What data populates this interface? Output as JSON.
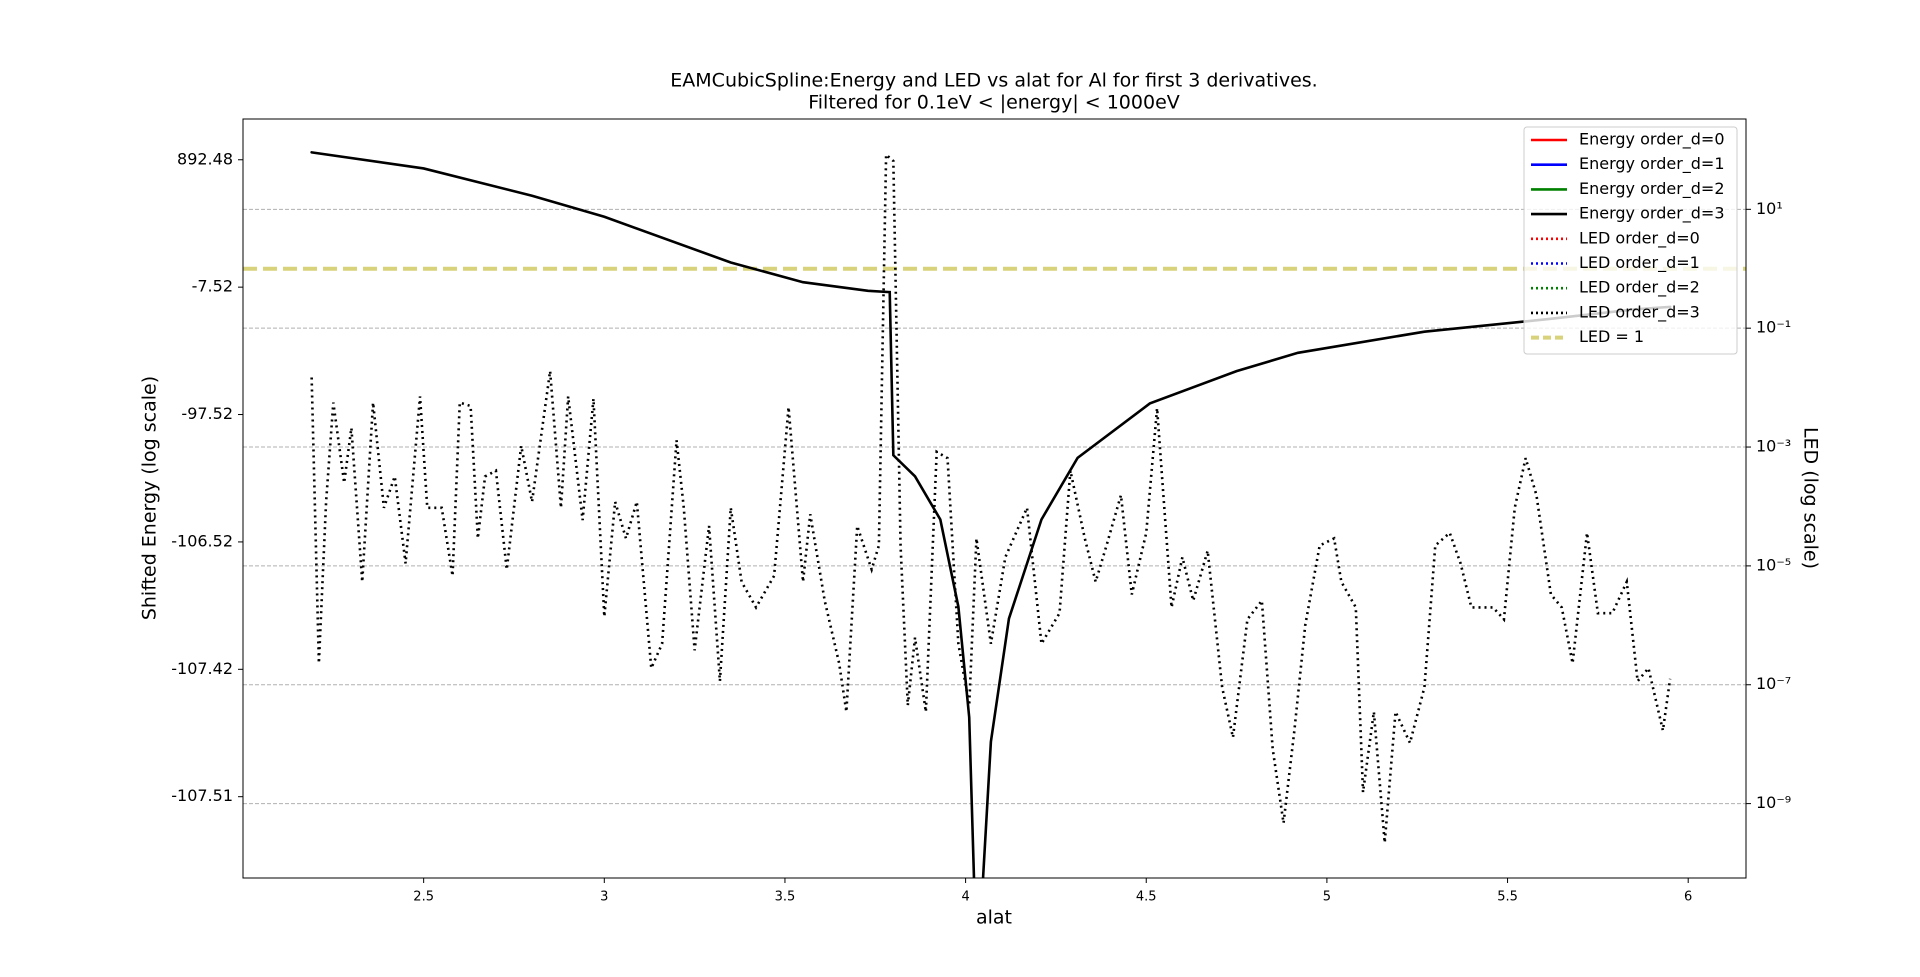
{
  "chart_data": {
    "type": "line",
    "title": "EAMCubicSpline:Energy and LED vs alat for Al for first 3 derivatives.",
    "subtitle": "Filtered for 0.1eV < |energy| < 1000eV",
    "x_label": "alat",
    "y_label": "Shifted Energy (log scale)",
    "y2_label": "LED (log scale)",
    "xlim": [
      2.0,
      6.16
    ],
    "xticks": [
      2.5,
      3.0,
      3.5,
      4.0,
      4.5,
      5.0,
      5.5,
      6.0
    ],
    "ylim": [
      -107.5177,
      1981.7
    ],
    "yticks": [
      892.48,
      -7.52,
      -97.52,
      -106.52,
      -107.42,
      -107.51
    ],
    "y2scale": "log",
    "y2lim": [
      5.6e-11,
      331
    ],
    "y2ticks": [
      {
        "value": 10,
        "label": "10¹"
      },
      {
        "value": 0.1,
        "label": "10⁻¹"
      },
      {
        "value": 0.001,
        "label": "10⁻³"
      },
      {
        "value": 1e-05,
        "label": "10⁻⁵"
      },
      {
        "value": 1e-07,
        "label": "10⁻⁷"
      },
      {
        "value": 1e-09,
        "label": "10⁻⁹"
      }
    ],
    "grid": "y2",
    "legend": "upper right",
    "series": [
      {
        "name": "Energy order_d=0",
        "color": "#ff0000",
        "style": "solid",
        "axis": "y",
        "x": [],
        "values": []
      },
      {
        "name": "Energy order_d=1",
        "color": "#0000ff",
        "style": "solid",
        "axis": "y",
        "x": [],
        "values": []
      },
      {
        "name": "Energy order_d=2",
        "color": "#008000",
        "style": "solid",
        "axis": "y",
        "x": [],
        "values": []
      },
      {
        "name": "Energy order_d=3",
        "color": "#000000",
        "style": "solid",
        "axis": "y",
        "x": [
          2.19,
          2.5,
          2.8,
          3.0,
          3.35,
          3.55,
          3.73,
          3.79,
          3.8,
          3.86,
          3.93,
          3.98,
          4.01,
          4.027,
          4.041,
          4.07,
          4.12,
          4.21,
          4.31,
          4.51,
          4.75,
          4.92,
          5.27,
          5.61,
          5.85,
          5.95
        ],
        "values": [
          1035.5,
          747.5,
          414.6,
          249.6,
          48.6,
          1.8,
          -14.0,
          -16.1,
          -102.73,
          -104.25,
          -106.02,
          -107.21,
          -107.478,
          -107.519,
          -107.519,
          -107.493,
          -107.27,
          -106.02,
          -102.95,
          -95.3,
          -85.6,
          -77.0,
          -62.8,
          -51.5,
          -40.7,
          -37.5
        ]
      },
      {
        "name": "LED order_d=0",
        "color": "#ff0000",
        "style": "dotted",
        "axis": "y2",
        "x": [],
        "values": []
      },
      {
        "name": "LED order_d=1",
        "color": "#0000ff",
        "style": "dotted",
        "axis": "y2",
        "x": [],
        "values": []
      },
      {
        "name": "LED order_d=2",
        "color": "#008000",
        "style": "dotted",
        "axis": "y2",
        "x": [],
        "values": []
      },
      {
        "name": "LED order_d=3",
        "color": "#000000",
        "style": "dotted",
        "axis": "y2",
        "x": [
          2.19,
          2.21,
          2.23,
          2.25,
          2.28,
          2.3,
          2.33,
          2.36,
          2.39,
          2.42,
          2.45,
          2.49,
          2.51,
          2.55,
          2.58,
          2.6,
          2.63,
          2.65,
          2.67,
          2.7,
          2.73,
          2.77,
          2.8,
          2.85,
          2.88,
          2.9,
          2.94,
          2.97,
          3.0,
          3.03,
          3.06,
          3.09,
          3.13,
          3.16,
          3.2,
          3.22,
          3.25,
          3.29,
          3.32,
          3.35,
          3.38,
          3.42,
          3.47,
          3.51,
          3.55,
          3.57,
          3.61,
          3.65,
          3.67,
          3.7,
          3.74,
          3.76,
          3.78,
          3.8,
          3.82,
          3.84,
          3.86,
          3.89,
          3.92,
          3.95,
          3.98,
          4.01,
          4.03,
          4.07,
          4.11,
          4.17,
          4.21,
          4.26,
          4.29,
          4.33,
          4.36,
          4.39,
          4.43,
          4.46,
          4.5,
          4.53,
          4.57,
          4.6,
          4.63,
          4.67,
          4.71,
          4.74,
          4.78,
          4.82,
          4.85,
          4.88,
          4.91,
          4.94,
          4.98,
          5.02,
          5.04,
          5.08,
          5.1,
          5.13,
          5.16,
          5.19,
          5.23,
          5.27,
          5.3,
          5.34,
          5.37,
          5.4,
          5.46,
          5.49,
          5.52,
          5.55,
          5.58,
          5.62,
          5.65,
          5.68,
          5.72,
          5.75,
          5.79,
          5.83,
          5.86,
          5.89,
          5.93,
          5.95
        ],
        "values": [
          0.0148,
          2.3e-07,
          0.00012,
          0.0056,
          0.00025,
          0.0021,
          5.4e-06,
          0.0056,
          9.5e-05,
          0.00032,
          1.1e-05,
          0.0071,
          9.5e-05,
          9.5e-05,
          6.8e-06,
          0.0056,
          0.0049,
          2.9e-05,
          0.00032,
          0.0004,
          8.7e-06,
          0.00105,
          0.00012,
          0.019,
          9.5e-05,
          0.0071,
          5.9e-05,
          0.0065,
          1.4e-06,
          0.00012,
          2.9e-05,
          0.00012,
          1.9e-07,
          4.9e-07,
          0.0013,
          9.5e-05,
          3.8e-07,
          4.7e-05,
          1.15e-07,
          9.5e-05,
          5.4e-06,
          2e-06,
          6.8e-06,
          0.0047,
          5.4e-06,
          7.4e-05,
          2.6e-06,
          2.3e-07,
          3.5e-08,
          4.7e-05,
          8.7e-06,
          2.2e-05,
          83,
          65,
          2.2e-05,
          4.5e-08,
          6.2e-07,
          3.5e-08,
          0.00083,
          0.00065,
          4.9e-07,
          4.5e-08,
          2.9e-05,
          4.9e-07,
          1.4e-05,
          9.5e-05,
          4.9e-07,
          1.6e-06,
          0.0004,
          2.9e-05,
          5.4e-06,
          2.2e-05,
          0.000155,
          3.3e-06,
          3.6e-05,
          0.0045,
          2e-06,
          1.4e-05,
          2.6e-06,
          1.8e-05,
          9.1e-08,
          1.3e-08,
          1.26e-06,
          2.6e-06,
          8.3e-09,
          4.7e-10,
          1.7e-08,
          1e-06,
          2.2e-05,
          2.9e-05,
          5.4e-06,
          2e-06,
          1.55e-09,
          3.5e-08,
          2.2e-10,
          3.5e-08,
          1.05e-08,
          9.1e-08,
          2.2e-05,
          3.6e-05,
          1.1e-05,
          2e-06,
          2e-06,
          1.26e-06,
          9.5e-05,
          0.00065,
          0.000155,
          3.3e-06,
          2e-06,
          2.3e-07,
          3.6e-05,
          1.6e-06,
          1.6e-06,
          5.4e-06,
          1.15e-07,
          1.9e-07,
          1.7e-08,
          1.26e-07
        ]
      }
    ],
    "reference_line": {
      "name": "LED = 1",
      "value": 1,
      "color": "#d8d27a",
      "style": "dashed",
      "axis": "y2"
    }
  }
}
